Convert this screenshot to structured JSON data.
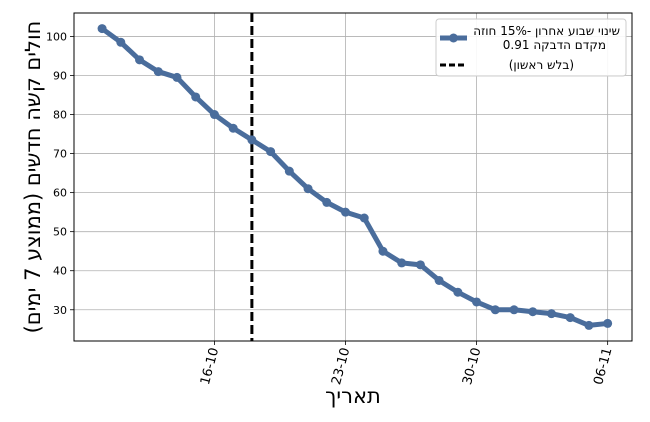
{
  "chart_data": {
    "type": "line",
    "xlabel": "תאריך",
    "ylabel": "חולים קשה חדשים (ממוצע 7 ימים)",
    "x": [
      0,
      1,
      2,
      3,
      4,
      5,
      6,
      7,
      8,
      9,
      10,
      11,
      12,
      13,
      14,
      15,
      16,
      17,
      18,
      19,
      20,
      21,
      22,
      23,
      24,
      25,
      26,
      27
    ],
    "xlim": [
      -1.5,
      28.3
    ],
    "ylim": [
      22,
      106
    ],
    "xticks": [
      {
        "x": 6,
        "label": "16-10"
      },
      {
        "x": 13,
        "label": "23-10"
      },
      {
        "x": 20,
        "label": "30-10"
      },
      {
        "x": 27,
        "label": "06-11"
      }
    ],
    "yticks": [
      30,
      40,
      50,
      60,
      70,
      80,
      90,
      100
    ],
    "grid": true,
    "legend_position": "top-right",
    "series": [
      {
        "name": "שינוי שבוע אחרון -15% חוזה\nמקדם הדבקה 0.91",
        "color": "#4a6d9c",
        "values": [
          102,
          98.5,
          94,
          91,
          89.5,
          84.5,
          80,
          76.5,
          73.5,
          70.5,
          65.5,
          61,
          57.5,
          55,
          53.5,
          45,
          42,
          41.5,
          37.5,
          34.5,
          32,
          30,
          30,
          29.5,
          29,
          28,
          26,
          26.5
        ]
      }
    ],
    "vline": {
      "x": 8,
      "label": "(בלש ראשון)",
      "color": "#000000",
      "style": "dashed"
    }
  }
}
